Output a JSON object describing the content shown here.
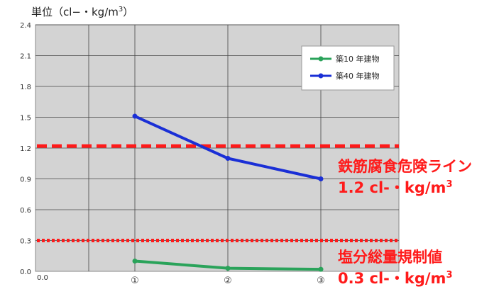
{
  "chart_data": {
    "type": "line",
    "unit_title": "単位（cl−・kg/m3）",
    "unit_title_parts": {
      "prefix": "単位（cl−・kg/m",
      "sup": "3",
      "suffix": "）"
    },
    "categories": [
      "①",
      "②",
      "③"
    ],
    "x_origin_label": "0.0",
    "y_ticks": [
      "0.0",
      "0.3",
      "0.6",
      "0.9",
      "1.2",
      "1.5",
      "1.8",
      "2.1",
      "2.4"
    ],
    "ylim": [
      0,
      2.4
    ],
    "grid": true,
    "legend_placement": "top-right",
    "series": [
      {
        "name": "築10 年建物",
        "color": "#2aa35a",
        "values": [
          0.1,
          0.03,
          0.02
        ]
      },
      {
        "name": "築40 年建物",
        "color": "#1a2fd6",
        "values": [
          1.51,
          1.1,
          0.9
        ]
      }
    ],
    "reference_lines": [
      {
        "value": 1.22,
        "style": "dashed",
        "color": "#ff1a1a",
        "label_line1": "鉄筋腐食危険ライン",
        "label_line2_prefix": "1.2 cl-・kg/m",
        "label_line2_sup": "3"
      },
      {
        "value": 0.3,
        "style": "dotted",
        "color": "#ff1a1a",
        "label_line1": "塩分総量規制値",
        "label_line2_prefix": "0.3 cl-・kg/m",
        "label_line2_sup": "3"
      }
    ]
  }
}
